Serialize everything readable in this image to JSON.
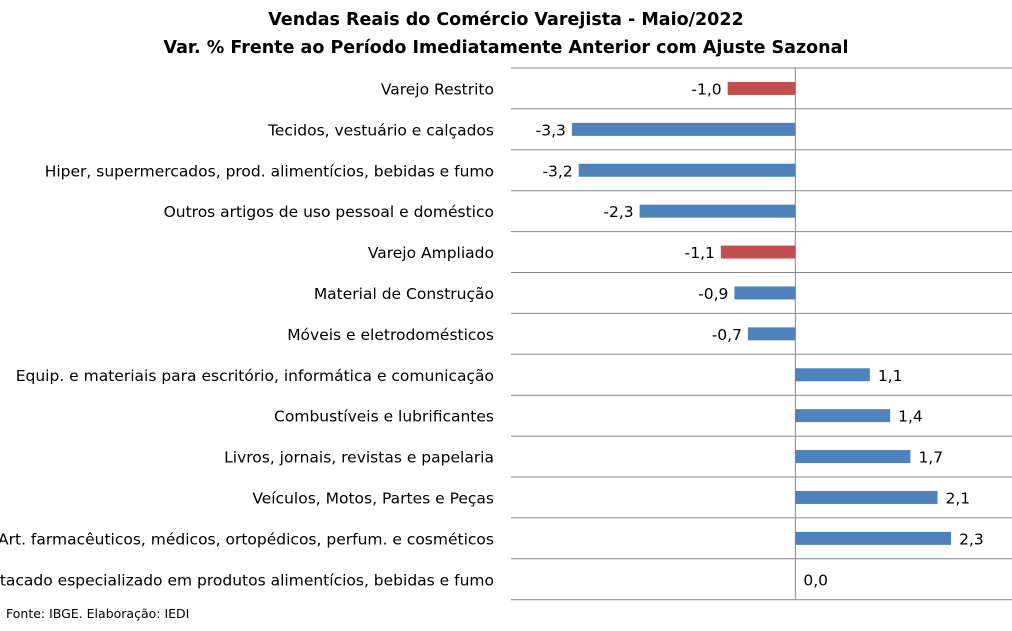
{
  "chart_data": {
    "type": "bar",
    "orientation": "horizontal",
    "title": "Vendas Reais do Comércio Varejista - Maio/2022",
    "subtitle": "Var. % Frente ao Período Imediatamente Anterior com Ajuste Sazonal",
    "categories": [
      "Varejo Restrito",
      "Tecidos, vestuário e calçados",
      "Hiper, supermercados, prod. alimentícios, bebidas e fumo",
      "Outros artigos de uso pessoal e doméstico",
      "Varejo Ampliado",
      "Material de Construção",
      "Móveis e eletrodomésticos",
      "Equip. e materiais para escritório, informática e comunicação",
      "Combustíveis e lubrificantes",
      "Livros, jornais, revistas e papelaria",
      "Veículos, Motos, Partes e Peças",
      "Art. farmacêuticos, médicos, ortopédicos, perfum. e cosméticos",
      "Atacado especializado em produtos alimentícios, bebidas e fumo"
    ],
    "values": [
      -1.0,
      -3.3,
      -3.2,
      -2.3,
      -1.1,
      -0.9,
      -0.7,
      1.1,
      1.4,
      1.7,
      2.1,
      2.3,
      0.0
    ],
    "value_labels": [
      "-1,0",
      "-3,3",
      "-3,2",
      "-2,3",
      "-1,1",
      "-0,9",
      "-0,7",
      "1,1",
      "1,4",
      "1,7",
      "2,1",
      "2,3",
      "0,0"
    ],
    "highlight": [
      true,
      false,
      false,
      false,
      true,
      false,
      false,
      false,
      false,
      false,
      false,
      false,
      false
    ],
    "xlim": [
      -4.2,
      3.2
    ],
    "grid": true,
    "legend": "none",
    "colors": {
      "default": "#4f81bd",
      "highlight": "#c0504d",
      "grid": "#868686",
      "axis": "#868686"
    }
  },
  "source": "Fonte: IBGE. Elaboração: IEDI"
}
